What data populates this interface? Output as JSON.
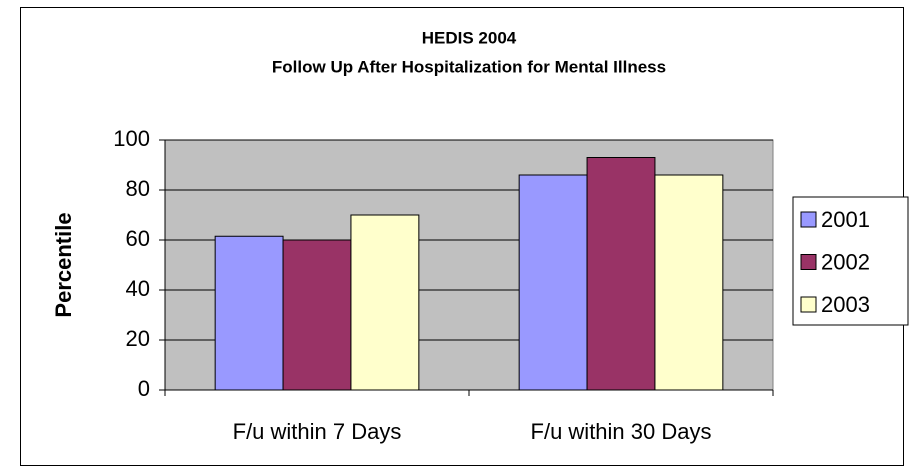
{
  "chart_data": {
    "type": "bar",
    "title": "HEDIS 2004",
    "subtitle": "Follow Up After Hospitalization for Mental Illness",
    "y_label": "Percentile",
    "categories": [
      "F/u within 7 Days",
      "F/u within 30 Days"
    ],
    "series": [
      {
        "name": "2001",
        "color": "#9999ff",
        "values": [
          61.5,
          86
        ]
      },
      {
        "name": "2002",
        "color": "#993366",
        "values": [
          60,
          93
        ]
      },
      {
        "name": "2003",
        "color": "#ffffcc",
        "values": [
          70,
          86
        ]
      }
    ],
    "ylim": [
      0,
      100
    ],
    "yticks": [
      0,
      20,
      40,
      60,
      80,
      100
    ],
    "grid": true,
    "legend": "right"
  }
}
